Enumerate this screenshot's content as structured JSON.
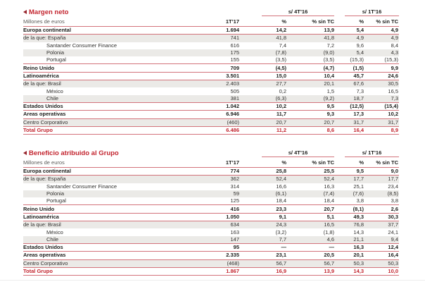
{
  "colors": {
    "red_text": "#c3252f",
    "marker_red": "#96242c",
    "line_red": "#d3737b",
    "row_shade": "#ebeae7",
    "text_dark": "#1d1d1b",
    "text_gray": "#5b5b59",
    "faint_divider": "#ededed"
  },
  "icons": {
    "section_marker": "left-pointing-triangle"
  },
  "tables": [
    {
      "title": "Margen neto",
      "subtitle": "Millones de euros",
      "group1": "s/ 4T’16",
      "group2": "s/ 1T’16",
      "col_headers": [
        "1T’17",
        "%",
        "% sin TC",
        "%",
        "% sin TC"
      ],
      "rows": [
        {
          "label": "Europa continental",
          "bold": true,
          "line": true,
          "values": [
            "1.694",
            "14,2",
            "13,9",
            "5,4",
            "4,9"
          ]
        },
        {
          "label": "de la que: España",
          "shaded": true,
          "values": [
            "741",
            "41,8",
            "41,8",
            "4,9",
            "4,9"
          ]
        },
        {
          "label": "Santander Consumer Finance",
          "indent": 1,
          "values": [
            "616",
            "7,4",
            "7,2",
            "9,6",
            "8,4"
          ]
        },
        {
          "label": "Polonia",
          "indent": 1,
          "shaded": true,
          "values": [
            "175",
            "(7,8)",
            "(9,0)",
            "5,4",
            "4,3"
          ]
        },
        {
          "label": "Portugal",
          "indent": 1,
          "line": true,
          "values": [
            "155",
            "(3,5)",
            "(3,5)",
            "(15,3)",
            "(15,3)"
          ]
        },
        {
          "label": "Reino Unido",
          "bold": true,
          "line": true,
          "values": [
            "709",
            "(4,5)",
            "(4,7)",
            "(1,5)",
            "9,9"
          ]
        },
        {
          "label": "Latinoamérica",
          "bold": true,
          "line": true,
          "values": [
            "3.501",
            "15,0",
            "10,4",
            "45,7",
            "24,6"
          ]
        },
        {
          "label": "de la que: Brasil",
          "shaded": true,
          "values": [
            "2.403",
            "27,7",
            "20,1",
            "67,6",
            "30,5"
          ]
        },
        {
          "label": "México",
          "indent": 1,
          "values": [
            "505",
            "0,2",
            "1,5",
            "7,3",
            "16,5"
          ]
        },
        {
          "label": "Chile",
          "indent": 1,
          "shaded": true,
          "line": true,
          "values": [
            "381",
            "(6,3)",
            "(9,2)",
            "18,7",
            "7,3"
          ]
        },
        {
          "label": "Estados Unidos",
          "bold": true,
          "line": true,
          "values": [
            "1.042",
            "10,2",
            "9,5",
            "(12,5)",
            "(15,4)"
          ]
        },
        {
          "label": "Areas operativas",
          "bold": true,
          "line": true,
          "values": [
            "6.946",
            "11,7",
            "9,3",
            "17,3",
            "10,2"
          ]
        },
        {
          "label": "Centro Corporativo",
          "shaded": true,
          "line": true,
          "values": [
            "(460)",
            "20,7",
            "20,7",
            "31,7",
            "31,7"
          ]
        },
        {
          "label": "Total Grupo",
          "bold": true,
          "red": true,
          "line": true,
          "values": [
            "6.486",
            "11,2",
            "8,6",
            "16,4",
            "8,9"
          ]
        }
      ]
    },
    {
      "title": "Beneficio atribuido al Grupo",
      "subtitle": "Millones de euros",
      "group1": "s/ 4T’16",
      "group2": "s/ 1T’16",
      "col_headers": [
        "1T’17",
        "%",
        "% sin TC",
        "%",
        "% sin TC"
      ],
      "rows": [
        {
          "label": "Europa continental",
          "bold": true,
          "line": true,
          "values": [
            "774",
            "25,8",
            "25,5",
            "9,5",
            "9,0"
          ]
        },
        {
          "label": "de la que: España",
          "shaded": true,
          "values": [
            "362",
            "52,4",
            "52,4",
            "17,7",
            "17,7"
          ]
        },
        {
          "label": "Santander Consumer Finance",
          "indent": 1,
          "values": [
            "314",
            "16,6",
            "16,3",
            "25,1",
            "23,4"
          ]
        },
        {
          "label": "Polonia",
          "indent": 1,
          "shaded": true,
          "values": [
            "59",
            "(6,1)",
            "(7,4)",
            "(7,6)",
            "(8,5)"
          ]
        },
        {
          "label": "Portugal",
          "indent": 1,
          "line": true,
          "values": [
            "125",
            "18,4",
            "18,4",
            "3,8",
            "3,8"
          ]
        },
        {
          "label": "Reino Unido",
          "bold": true,
          "line": true,
          "values": [
            "416",
            "23,3",
            "20,7",
            "(8,1)",
            "2,6"
          ]
        },
        {
          "label": "Latinoamérica",
          "bold": true,
          "line": true,
          "values": [
            "1.050",
            "9,1",
            "5,1",
            "49,3",
            "30,3"
          ]
        },
        {
          "label": "de la que: Brasil",
          "shaded": true,
          "values": [
            "634",
            "24,3",
            "16,5",
            "76,8",
            "37,7"
          ]
        },
        {
          "label": "México",
          "indent": 1,
          "values": [
            "163",
            "(3,2)",
            "(1,8)",
            "14,3",
            "24,1"
          ]
        },
        {
          "label": "Chile",
          "indent": 1,
          "shaded": true,
          "line": true,
          "values": [
            "147",
            "7,7",
            "4,6",
            "21,1",
            "9,4"
          ]
        },
        {
          "label": "Estados Unidos",
          "bold": true,
          "line": true,
          "values": [
            "95",
            "—",
            "—",
            "16,3",
            "12,4"
          ]
        },
        {
          "label": "Areas operativas",
          "bold": true,
          "line": true,
          "values": [
            "2.335",
            "23,1",
            "20,5",
            "20,1",
            "16,4"
          ]
        },
        {
          "label": "Centro Corporativo",
          "shaded": true,
          "line": true,
          "values": [
            "(468)",
            "56,7",
            "56,7",
            "50,3",
            "50,3"
          ]
        },
        {
          "label": "Total Grupo",
          "bold": true,
          "red": true,
          "line": true,
          "values": [
            "1.867",
            "16,9",
            "13,9",
            "14,3",
            "10,0"
          ]
        }
      ]
    }
  ]
}
